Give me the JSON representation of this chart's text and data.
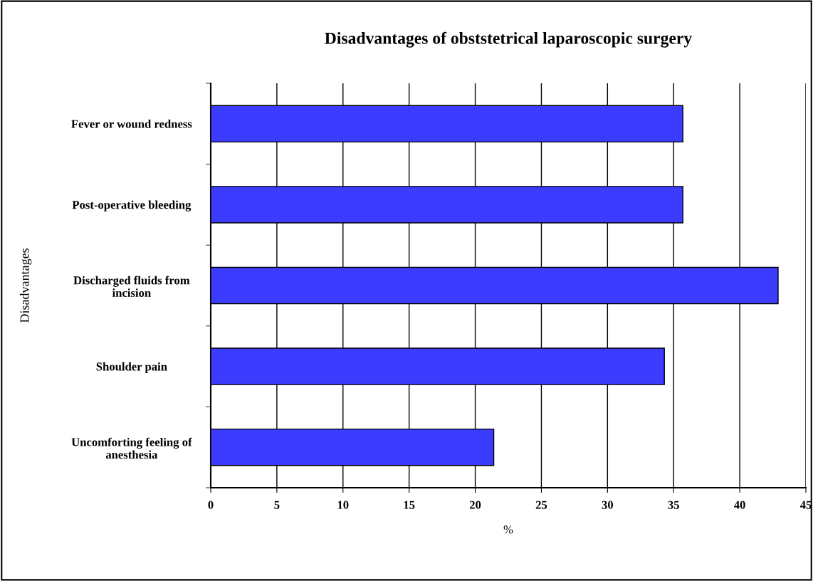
{
  "chart_data": {
    "type": "bar",
    "orientation": "horizontal",
    "title": "Disadvantages of obststetrical laparoscopic surgery",
    "xlabel": "%",
    "ylabel": "Disadvantages",
    "categories": [
      "Fever or wound redness",
      "Post-operative bleeding",
      "Discharged fluids from\nincision",
      "Shoulder pain",
      "Uncomforting feeling of\nanesthesia"
    ],
    "values": [
      35.7,
      35.7,
      42.9,
      34.3,
      21.4
    ],
    "color": "#3c3cff",
    "xlim": [
      0,
      45
    ],
    "xticks": [
      0,
      5,
      10,
      15,
      20,
      25,
      30,
      35,
      40,
      45
    ],
    "grid": "x",
    "legend": false
  }
}
